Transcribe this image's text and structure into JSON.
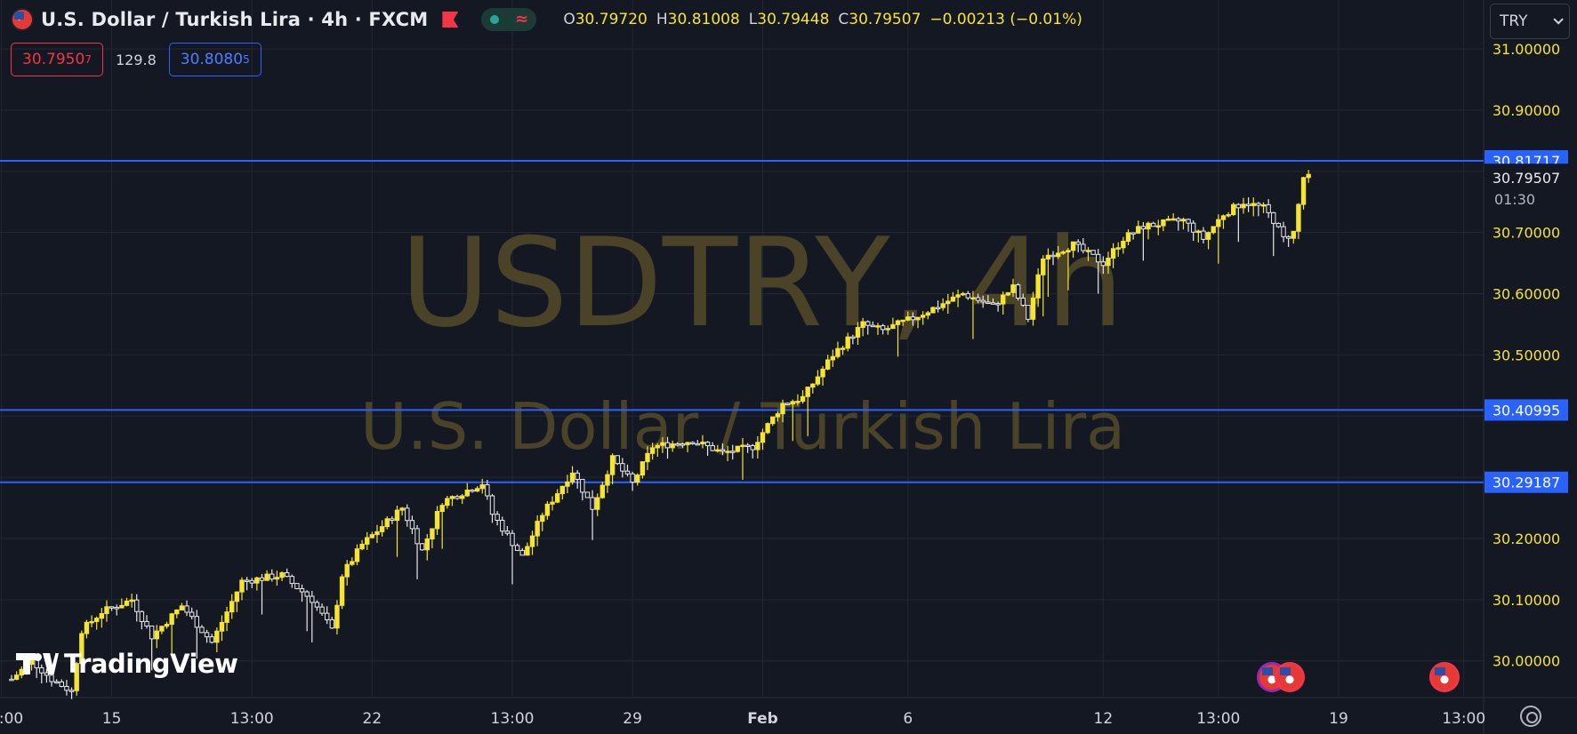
{
  "header": {
    "title": "U.S. Dollar / Turkish Lira · 4h · FXCM",
    "ohlc": [
      {
        "key": "O",
        "value": "30.79720"
      },
      {
        "key": "H",
        "value": "30.81008"
      },
      {
        "key": "L",
        "value": "30.79448"
      },
      {
        "key": "C",
        "value": "30.79507"
      },
      {
        "key": "",
        "value": "−0.00213 (−0.01%)"
      }
    ]
  },
  "trade": {
    "sell_main": "30.7950",
    "sell_sup": "7",
    "spread": "129.8",
    "buy_main": "30.8080",
    "buy_sup": "5"
  },
  "currency": {
    "selected": "TRY"
  },
  "watermark": {
    "symbol": "USDTRY, 4h",
    "name": "U.S. Dollar / Turkish Lira"
  },
  "brand": {
    "logo_text": "TradingView"
  },
  "colors": {
    "background": "#141823",
    "grid": "#222733",
    "candle": "#f5e430",
    "candle_hollow": "#e9e9e9",
    "hline": "#2962ff",
    "axis_text": "#f5e430",
    "watermark": "#4a4327"
  },
  "chart_data": {
    "type": "candlestick",
    "ylim": [
      29.94,
      31.08
    ],
    "y_ticks": [
      "31.00000",
      "30.90000",
      "30.70000",
      "30.60000",
      "30.50000",
      "30.20000",
      "30.10000",
      "30.00000"
    ],
    "x_ticks": [
      {
        "label": "13:00",
        "i": -2,
        "bold": false
      },
      {
        "label": "15",
        "i": 20,
        "bold": false
      },
      {
        "label": "13:00",
        "i": 48,
        "bold": false
      },
      {
        "label": "22",
        "i": 72,
        "bold": false
      },
      {
        "label": "13:00",
        "i": 100,
        "bold": false
      },
      {
        "label": "29",
        "i": 124,
        "bold": false
      },
      {
        "label": "Feb",
        "i": 150,
        "bold": true
      },
      {
        "label": "6",
        "i": 179,
        "bold": false
      },
      {
        "label": "12",
        "i": 218,
        "bold": false
      },
      {
        "label": "13:00",
        "i": 241,
        "bold": false
      },
      {
        "label": "19",
        "i": 265,
        "bold": false
      },
      {
        "label": "13:00",
        "i": 290,
        "bold": false
      }
    ],
    "horizontal_lines": [
      {
        "value": 30.81717,
        "label": "30.81717"
      },
      {
        "value": 30.40995,
        "label": "30.40995"
      },
      {
        "value": 30.29187,
        "label": "30.29187"
      }
    ],
    "last_price": {
      "value": 30.79507,
      "label": "30.79507",
      "countdown": "01:30"
    },
    "anchors": [
      [
        0,
        29.97
      ],
      [
        4,
        30.0
      ],
      [
        8,
        29.97
      ],
      [
        12,
        29.95
      ],
      [
        14,
        30.05
      ],
      [
        18,
        30.08
      ],
      [
        24,
        30.1
      ],
      [
        28,
        30.04
      ],
      [
        34,
        30.09
      ],
      [
        40,
        30.03
      ],
      [
        46,
        30.13
      ],
      [
        54,
        30.14
      ],
      [
        60,
        30.1
      ],
      [
        64,
        30.05
      ],
      [
        66,
        30.14
      ],
      [
        70,
        30.19
      ],
      [
        78,
        30.25
      ],
      [
        82,
        30.18
      ],
      [
        86,
        30.26
      ],
      [
        94,
        30.29
      ],
      [
        96,
        30.24
      ],
      [
        102,
        30.17
      ],
      [
        106,
        30.24
      ],
      [
        112,
        30.31
      ],
      [
        116,
        30.25
      ],
      [
        120,
        30.33
      ],
      [
        124,
        30.29
      ],
      [
        128,
        30.35
      ],
      [
        136,
        30.36
      ],
      [
        142,
        30.34
      ],
      [
        148,
        30.35
      ],
      [
        154,
        30.42
      ],
      [
        158,
        30.43
      ],
      [
        164,
        30.5
      ],
      [
        170,
        30.55
      ],
      [
        174,
        30.54
      ],
      [
        180,
        30.56
      ],
      [
        190,
        30.6
      ],
      [
        196,
        30.58
      ],
      [
        200,
        30.61
      ],
      [
        203,
        30.56
      ],
      [
        206,
        30.66
      ],
      [
        212,
        30.68
      ],
      [
        218,
        30.65
      ],
      [
        222,
        30.69
      ],
      [
        226,
        30.71
      ],
      [
        234,
        30.72
      ],
      [
        238,
        30.69
      ],
      [
        242,
        30.73
      ],
      [
        246,
        30.75
      ],
      [
        250,
        30.74
      ],
      [
        252,
        30.72
      ],
      [
        254,
        30.69
      ],
      [
        256,
        30.7
      ],
      [
        258,
        30.79
      ],
      [
        259,
        30.795
      ]
    ]
  }
}
